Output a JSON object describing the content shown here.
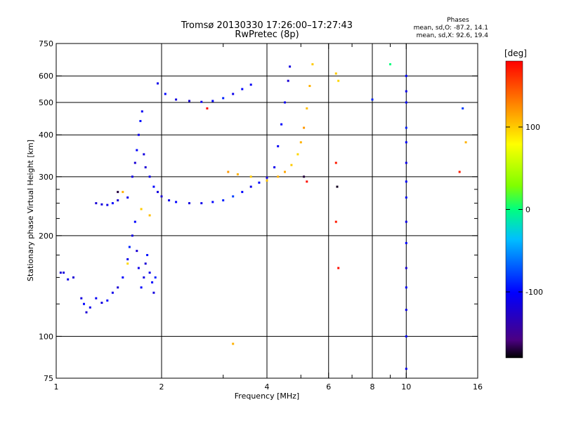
{
  "chart_data": {
    "type": "scatter",
    "title": "Tromsø 20130330 17:26:00–17:27:43",
    "subtitle": "RwPretec (8p)",
    "xlabel": "Frequency [MHz]",
    "ylabel": "Stationary phase Virtual Height [km]",
    "x_scale": "log",
    "y_scale": "log",
    "xlim": [
      1,
      16
    ],
    "ylim": [
      75,
      750
    ],
    "x_ticks": [
      1,
      2,
      4,
      6,
      8,
      10,
      16
    ],
    "x_minor_ticks": [
      3,
      5,
      7,
      9
    ],
    "y_ticks": [
      75,
      100,
      200,
      300,
      400,
      500,
      600,
      750
    ],
    "y_minor_ticks": [
      125,
      150,
      175,
      225,
      250,
      275
    ],
    "grid": true,
    "colorbar": {
      "label": "[deg]",
      "range": [
        -180,
        180
      ],
      "ticks": [
        100,
        0,
        -100
      ]
    },
    "phases_box": {
      "heading": "Phases",
      "line1": "mean, sd,O: -87.2, 14.1",
      "line2": "mean, sd,X:  92.6, 19.4"
    },
    "series": [
      {
        "points": [
          [
            1.03,
            155,
            -120
          ],
          [
            1.05,
            155,
            -115
          ],
          [
            1.08,
            148,
            -110
          ],
          [
            1.12,
            150,
            -120
          ],
          [
            1.18,
            130,
            -115
          ],
          [
            1.2,
            125,
            -100
          ],
          [
            1.22,
            118,
            -120
          ],
          [
            1.25,
            122,
            -110
          ],
          [
            1.3,
            130,
            -105
          ],
          [
            1.35,
            126,
            -115
          ],
          [
            1.4,
            128,
            -100
          ],
          [
            1.45,
            135,
            -110
          ],
          [
            1.5,
            140,
            -120
          ],
          [
            1.55,
            150,
            -100
          ],
          [
            1.6,
            170,
            -110
          ],
          [
            1.62,
            185,
            -90
          ],
          [
            1.65,
            200,
            -115
          ],
          [
            1.68,
            220,
            -100
          ],
          [
            1.7,
            180,
            -120
          ],
          [
            1.72,
            160,
            -110
          ],
          [
            1.75,
            140,
            -100
          ],
          [
            1.78,
            150,
            -115
          ],
          [
            1.8,
            165,
            -120
          ],
          [
            1.82,
            175,
            -95
          ],
          [
            1.85,
            155,
            -110
          ],
          [
            1.88,
            145,
            -100
          ],
          [
            1.9,
            135,
            -115
          ],
          [
            1.92,
            150,
            -90
          ]
        ]
      },
      {
        "points": [
          [
            1.3,
            250,
            -120
          ],
          [
            1.35,
            248,
            -115
          ],
          [
            1.4,
            247,
            -110
          ],
          [
            1.45,
            250,
            -100
          ],
          [
            1.5,
            255,
            -120
          ],
          [
            1.6,
            260,
            -110
          ],
          [
            1.65,
            300,
            -115
          ],
          [
            1.68,
            330,
            -120
          ],
          [
            1.7,
            360,
            -100
          ],
          [
            1.72,
            400,
            -110
          ],
          [
            1.74,
            440,
            -95
          ],
          [
            1.76,
            470,
            -105
          ],
          [
            1.78,
            350,
            -115
          ],
          [
            1.8,
            320,
            -120
          ],
          [
            1.85,
            300,
            -110
          ],
          [
            1.9,
            280,
            -100
          ],
          [
            1.95,
            270,
            -115
          ],
          [
            2.0,
            262,
            -120
          ],
          [
            2.1,
            255,
            -110
          ],
          [
            2.2,
            252,
            -100
          ],
          [
            2.4,
            250,
            -115
          ],
          [
            2.6,
            250,
            -110
          ],
          [
            2.8,
            252,
            -100
          ],
          [
            3.0,
            255,
            -90
          ],
          [
            3.2,
            262,
            -80
          ],
          [
            3.4,
            270,
            -100
          ],
          [
            3.6,
            280,
            -110
          ],
          [
            3.8,
            288,
            -100
          ],
          [
            4.0,
            298,
            -115
          ],
          [
            4.2,
            320,
            -110
          ],
          [
            4.3,
            370,
            -105
          ],
          [
            4.4,
            430,
            -100
          ],
          [
            4.5,
            500,
            -110
          ],
          [
            4.6,
            580,
            -120
          ],
          [
            4.65,
            640,
            -115
          ]
        ]
      },
      {
        "points": [
          [
            1.95,
            570,
            -110
          ],
          [
            2.05,
            530,
            -100
          ],
          [
            2.2,
            510,
            -115
          ],
          [
            2.4,
            505,
            -120
          ],
          [
            2.6,
            502,
            -110
          ],
          [
            2.8,
            505,
            -100
          ],
          [
            3.0,
            515,
            -90
          ],
          [
            3.2,
            530,
            -110
          ],
          [
            3.4,
            548,
            -100
          ],
          [
            3.6,
            565,
            -105
          ]
        ]
      },
      {
        "points": [
          [
            3.1,
            310,
            120
          ],
          [
            3.3,
            305,
            110
          ],
          [
            3.6,
            300,
            100
          ],
          [
            4.0,
            292,
            105
          ],
          [
            4.3,
            300,
            110
          ],
          [
            4.5,
            310,
            115
          ],
          [
            4.7,
            325,
            100
          ],
          [
            4.9,
            350,
            95
          ],
          [
            5.0,
            380,
            110
          ],
          [
            5.1,
            420,
            120
          ],
          [
            5.2,
            480,
            105
          ],
          [
            5.3,
            560,
            110
          ],
          [
            5.4,
            650,
            100
          ],
          [
            6.3,
            610,
            100
          ],
          [
            6.4,
            580,
            95
          ],
          [
            1.55,
            270,
            110
          ],
          [
            1.75,
            240,
            100
          ],
          [
            1.85,
            230,
            105
          ],
          [
            3.2,
            95,
            110
          ],
          [
            1.6,
            165,
            95
          ]
        ]
      },
      {
        "points": [
          [
            5.2,
            290,
            175
          ],
          [
            5.1,
            300,
            -170
          ],
          [
            6.3,
            330,
            170
          ],
          [
            6.35,
            280,
            -175
          ],
          [
            6.4,
            160,
            175
          ],
          [
            6.3,
            220,
            170
          ],
          [
            2.7,
            480,
            175
          ],
          [
            1.5,
            270,
            -170
          ]
        ]
      },
      {
        "points": [
          [
            10.0,
            600,
            -100
          ],
          [
            10.0,
            540,
            -110
          ],
          [
            10.0,
            500,
            -100
          ],
          [
            10.0,
            420,
            -90
          ],
          [
            10.0,
            380,
            -100
          ],
          [
            10.0,
            330,
            -110
          ],
          [
            10.0,
            290,
            -100
          ],
          [
            10.0,
            260,
            -95
          ],
          [
            10.0,
            220,
            -110
          ],
          [
            10.0,
            190,
            -100
          ],
          [
            10.0,
            160,
            -120
          ],
          [
            10.0,
            140,
            -100
          ],
          [
            10.0,
            120,
            -110
          ],
          [
            10.0,
            100,
            -100
          ],
          [
            10.0,
            80,
            -110
          ],
          [
            8.0,
            510,
            -90
          ],
          [
            9.0,
            650,
            0
          ],
          [
            14.5,
            480,
            -80
          ],
          [
            14.8,
            380,
            110
          ],
          [
            14.2,
            310,
            170
          ]
        ]
      }
    ]
  }
}
